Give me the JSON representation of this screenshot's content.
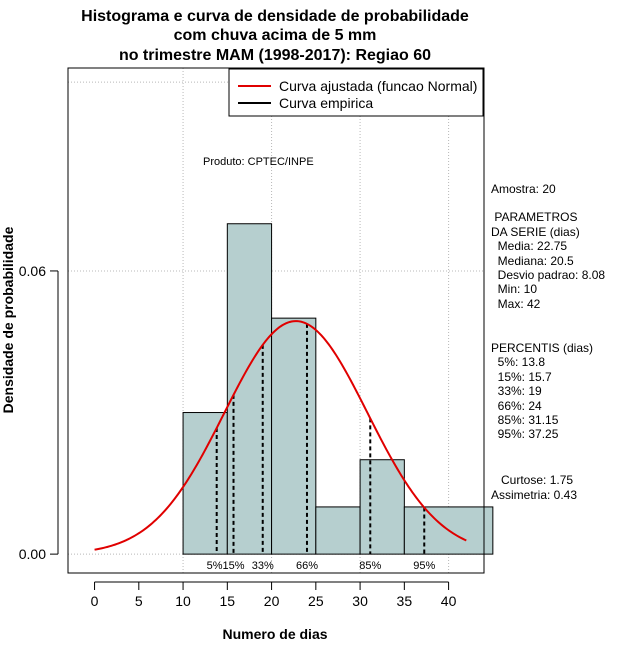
{
  "chart_data": {
    "type": "histogram",
    "title": [
      "Histograma e curva de densidade de probabilidade",
      "com chuva acima de 5 mm",
      "no trimestre MAM (1998-2017): Regiao 60"
    ],
    "xlabel": "Numero de dias",
    "ylabel": "Densidade de probabilidade",
    "xlim": [
      -3,
      44
    ],
    "ylim": [
      -0.004,
      0.103
    ],
    "x_ticks": [
      0,
      5,
      10,
      15,
      20,
      25,
      30,
      35,
      40
    ],
    "x_tick_labels": [
      "0",
      "5",
      "10",
      "15",
      "20",
      "25",
      "30",
      "35",
      "40"
    ],
    "y_ticks": [
      0.0,
      0.06
    ],
    "y_tick_labels": [
      "0.00",
      "0.06"
    ],
    "grid_y": [
      0.0,
      0.06,
      0.1
    ],
    "grid_x": [
      10,
      20,
      30,
      40
    ],
    "bins": [
      {
        "start": 10,
        "end": 15,
        "density": 0.03
      },
      {
        "start": 15,
        "end": 20,
        "density": 0.07
      },
      {
        "start": 20,
        "end": 25,
        "density": 0.05
      },
      {
        "start": 25,
        "end": 30,
        "density": 0.01
      },
      {
        "start": 30,
        "end": 35,
        "density": 0.02
      },
      {
        "start": 35,
        "end": 45,
        "density": 0.01
      }
    ],
    "bar_color": "#b6cfcf",
    "normal_fit": {
      "mean": 22.75,
      "sd": 8.08,
      "x_from": 0,
      "x_to": 42,
      "color": "#e00000"
    },
    "percentile_lines": [
      {
        "label": "5%",
        "value": 13.8
      },
      {
        "label": "15%",
        "value": 15.7
      },
      {
        "label": "33%",
        "value": 19
      },
      {
        "label": "66%",
        "value": 24
      },
      {
        "label": "85%",
        "value": 31.15
      },
      {
        "label": "95%",
        "value": 37.25
      }
    ],
    "percentile_labels": [
      {
        "text": "5%15%",
        "x": 14.8
      },
      {
        "text": "33%",
        "x": 19
      },
      {
        "text": "66%",
        "x": 24
      },
      {
        "text": "85%",
        "x": 31.15
      },
      {
        "text": "95%",
        "x": 37.25
      }
    ],
    "legend": [
      {
        "label": "Curva ajustada (funcao Normal)",
        "color": "#e00000"
      },
      {
        "label": "Curva empirica",
        "color": "#000000"
      }
    ],
    "legend_position": "top-right",
    "product_note": "Produto: CPTEC/INPE"
  },
  "stats_panel": [
    "Amostra: 20",
    " PARAMETROS",
    "DA SERIE (dias)",
    "  Media: 22.75",
    "  Mediana: 20.5",
    "  Desvio padrao: 8.08",
    "  Min: 10",
    "  Max: 42",
    "PERCENTIS (dias)",
    "  5%: 13.8",
    "  15%: 15.7",
    "  33%: 19",
    "  66%: 24",
    "  85%: 31.15",
    "  95%: 37.25",
    "   Curtose: 1.75",
    "Assimetria: 0.43"
  ]
}
